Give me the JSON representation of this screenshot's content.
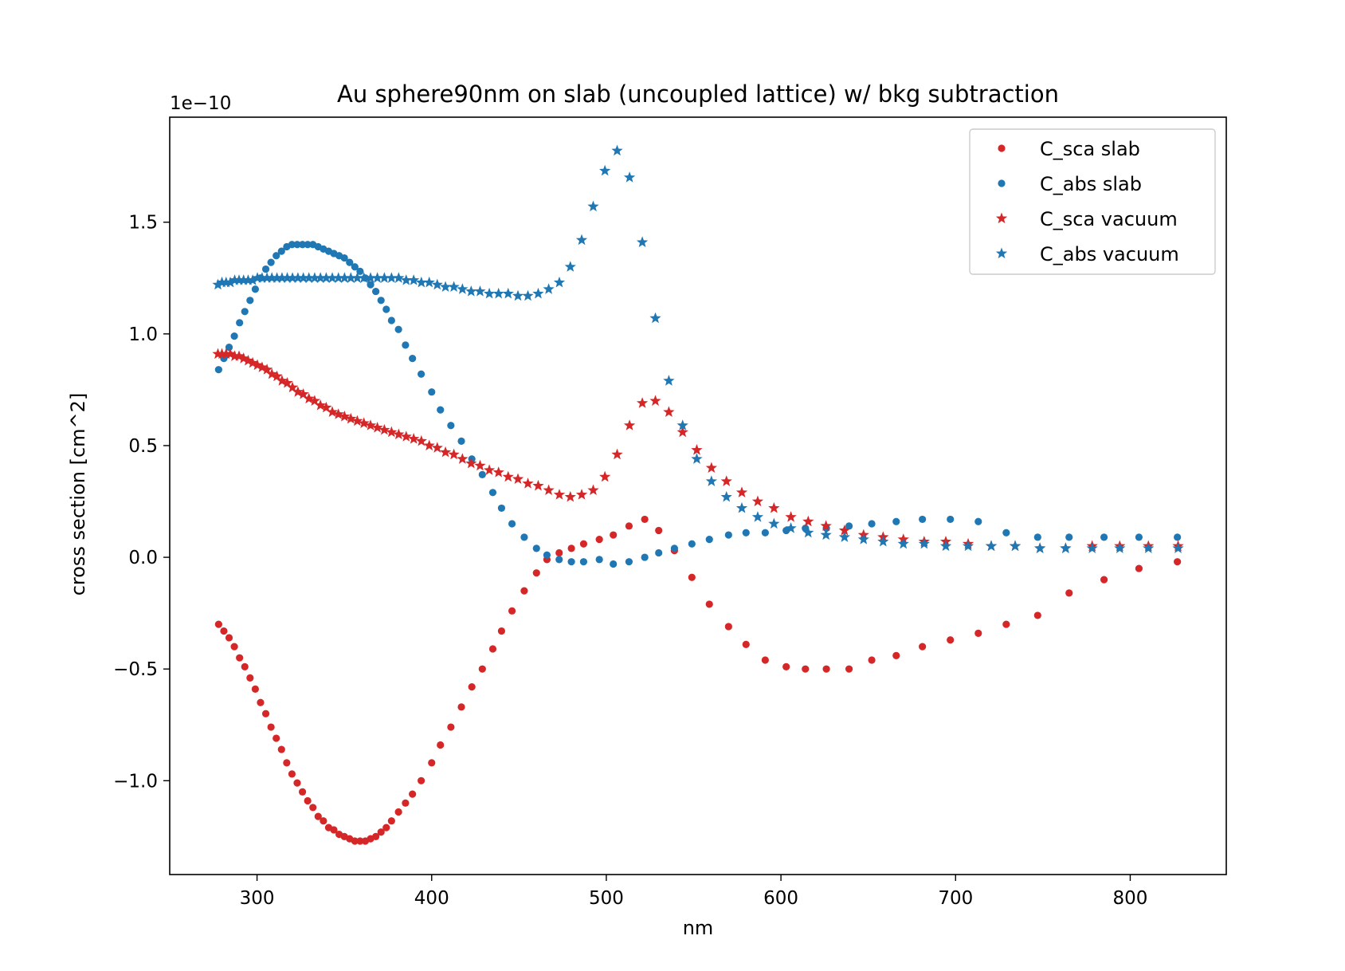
{
  "chart_data": {
    "type": "scatter",
    "title": "Au sphere90nm on slab (uncoupled lattice) w/ bkg subtraction",
    "xlabel": "nm",
    "ylabel": "cross section [cm^2]",
    "y_offset_label": "1e−10",
    "y_scale": 1e-10,
    "xlim": [
      250,
      855
    ],
    "ylim": [
      -1.42,
      1.97
    ],
    "x_ticks": [
      300,
      400,
      500,
      600,
      700,
      800
    ],
    "y_ticks": [
      -1.0,
      -0.5,
      0.0,
      0.5,
      1.0,
      1.5
    ],
    "x_tick_labels": [
      "300",
      "400",
      "500",
      "600",
      "700",
      "800"
    ],
    "y_tick_labels": [
      "−1.0",
      "−0.5",
      "0.0",
      "0.5",
      "1.0",
      "1.5"
    ],
    "grid": false,
    "legend_position": "top-right",
    "x": [
      277.6,
      279.9,
      282.3,
      284.7,
      287.2,
      289.7,
      292.3,
      294.9,
      297.5,
      300.2,
      302.9,
      305.7,
      308.5,
      311.4,
      314.3,
      317.3,
      320.3,
      323.4,
      326.5,
      329.7,
      333.0,
      336.3,
      339.6,
      343.1,
      346.6,
      350.1,
      353.7,
      357.4,
      361.2,
      365.0,
      368.9,
      372.9,
      377.0,
      381.1,
      385.4,
      389.7,
      394.1,
      398.6,
      403.2,
      407.9,
      412.7,
      417.6,
      422.6,
      427.7,
      433.0,
      438.3,
      443.8,
      449.4,
      455.1,
      461.0,
      467.0,
      473.1,
      479.4,
      485.9,
      492.5,
      499.2,
      506.2,
      513.3,
      520.6,
      528.1,
      535.8,
      543.7,
      551.8,
      560.2,
      568.8,
      577.6,
      586.7,
      596.0,
      605.7,
      615.6,
      625.8,
      636.4,
      647.3,
      658.5,
      670.1,
      682.0,
      694.4,
      707.2,
      720.4,
      734.1,
      748.3,
      763.0,
      778.2,
      794.0,
      810.4,
      827.4
    ],
    "series": [
      {
        "name": "C_sca slab",
        "marker": "dot",
        "color": "#d62728",
        "x": [
          278.0,
          281.0,
          284.0,
          287.0,
          290.0,
          293.0,
          296.0,
          299.0,
          302.0,
          305.0,
          308.0,
          311.0,
          314.0,
          317.0,
          320.0,
          323.0,
          326.0,
          329.0,
          332.0,
          335.0,
          338.0,
          341.0,
          344.0,
          347.0,
          350.0,
          353.0,
          356.0,
          359.0,
          362.0,
          365.0,
          368.0,
          371.0,
          374.0,
          377.0,
          381.0,
          385.0,
          389.0,
          394.0,
          400.0,
          405.0,
          411.0,
          417.0,
          423.0,
          429.0,
          435.0,
          440.0,
          446.0,
          453.0,
          460.0,
          466.0,
          473.0,
          480.0,
          487.0,
          496.0,
          504.0,
          513.0,
          522.0,
          530.0,
          539.0,
          549.0,
          559.0,
          570.0,
          580.0,
          591.0,
          603.0,
          614.0,
          626.0,
          639.0,
          652.0,
          666.0,
          681.0,
          697.0,
          713.0,
          729.0,
          747.0,
          765.0,
          785.0,
          805.0,
          827.0
        ],
        "values": [
          -0.3,
          -0.33,
          -0.36,
          -0.4,
          -0.45,
          -0.49,
          -0.54,
          -0.59,
          -0.65,
          -0.7,
          -0.76,
          -0.81,
          -0.86,
          -0.92,
          -0.97,
          -1.01,
          -1.05,
          -1.09,
          -1.12,
          -1.16,
          -1.18,
          -1.21,
          -1.22,
          -1.24,
          -1.25,
          -1.26,
          -1.27,
          -1.27,
          -1.27,
          -1.26,
          -1.25,
          -1.23,
          -1.21,
          -1.18,
          -1.14,
          -1.1,
          -1.06,
          -1.0,
          -0.92,
          -0.84,
          -0.76,
          -0.67,
          -0.58,
          -0.5,
          -0.41,
          -0.33,
          -0.24,
          -0.15,
          -0.07,
          -0.01,
          0.02,
          0.04,
          0.06,
          0.08,
          0.1,
          0.14,
          0.17,
          0.12,
          0.03,
          -0.09,
          -0.21,
          -0.31,
          -0.39,
          -0.46,
          -0.49,
          -0.5,
          -0.5,
          -0.5,
          -0.46,
          -0.44,
          -0.4,
          -0.37,
          -0.34,
          -0.3,
          -0.26,
          -0.16,
          -0.1,
          -0.05,
          -0.02
        ]
      },
      {
        "name": "C_abs slab",
        "marker": "dot",
        "color": "#1f77b4",
        "x": [
          278.0,
          281.0,
          284.0,
          287.0,
          290.0,
          293.0,
          296.0,
          299.0,
          302.0,
          305.0,
          308.0,
          311.0,
          314.0,
          317.0,
          320.0,
          323.0,
          326.0,
          329.0,
          332.0,
          335.0,
          338.0,
          341.0,
          344.0,
          347.0,
          350.0,
          353.0,
          356.0,
          359.0,
          362.0,
          365.0,
          368.0,
          371.0,
          374.0,
          377.0,
          381.0,
          385.0,
          389.0,
          394.0,
          400.0,
          405.0,
          411.0,
          417.0,
          423.0,
          429.0,
          435.0,
          440.0,
          446.0,
          453.0,
          460.0,
          466.0,
          473.0,
          480.0,
          487.0,
          496.0,
          504.0,
          513.0,
          522.0,
          530.0,
          539.0,
          549.0,
          559.0,
          570.0,
          580.0,
          591.0,
          603.0,
          614.0,
          626.0,
          639.0,
          652.0,
          666.0,
          681.0,
          697.0,
          713.0,
          729.0,
          747.0,
          765.0,
          785.0,
          805.0,
          827.0
        ],
        "values": [
          0.84,
          0.89,
          0.94,
          0.99,
          1.05,
          1.1,
          1.15,
          1.2,
          1.25,
          1.29,
          1.32,
          1.35,
          1.37,
          1.39,
          1.4,
          1.4,
          1.4,
          1.4,
          1.4,
          1.39,
          1.38,
          1.37,
          1.36,
          1.35,
          1.34,
          1.32,
          1.3,
          1.28,
          1.25,
          1.22,
          1.19,
          1.15,
          1.11,
          1.06,
          1.02,
          0.95,
          0.89,
          0.82,
          0.74,
          0.66,
          0.59,
          0.52,
          0.44,
          0.37,
          0.29,
          0.22,
          0.15,
          0.09,
          0.04,
          0.01,
          -0.01,
          -0.02,
          -0.02,
          -0.01,
          -0.03,
          -0.02,
          0.0,
          0.02,
          0.04,
          0.06,
          0.08,
          0.1,
          0.11,
          0.11,
          0.12,
          0.13,
          0.13,
          0.14,
          0.15,
          0.16,
          0.17,
          0.17,
          0.16,
          0.11,
          0.09,
          0.09,
          0.09,
          0.09,
          0.09
        ]
      },
      {
        "name": "C_sca vacuum",
        "marker": "star",
        "color": "#d62728",
        "x": [
          277.6,
          279.9,
          282.3,
          284.7,
          287.2,
          289.7,
          292.3,
          294.9,
          297.5,
          300.2,
          302.9,
          305.7,
          308.5,
          311.4,
          314.3,
          317.3,
          320.3,
          323.4,
          326.5,
          329.7,
          333.0,
          336.3,
          339.6,
          343.1,
          346.6,
          350.1,
          353.7,
          357.4,
          361.2,
          365.0,
          368.9,
          372.9,
          377.0,
          381.1,
          385.4,
          389.7,
          394.1,
          398.6,
          403.2,
          407.9,
          412.7,
          417.6,
          422.6,
          427.7,
          433.0,
          438.3,
          443.8,
          449.4,
          455.1,
          461.0,
          467.0,
          473.1,
          479.4,
          485.9,
          492.5,
          499.2,
          506.2,
          513.3,
          520.6,
          528.1,
          535.8,
          543.7,
          551.8,
          560.2,
          568.8,
          577.6,
          586.7,
          596.0,
          605.7,
          615.6,
          625.8,
          636.4,
          647.3,
          658.5,
          670.1,
          682.0,
          694.4,
          707.2,
          720.4,
          734.1,
          748.3,
          763.0,
          778.2,
          794.0,
          810.4,
          827.4
        ],
        "values": [
          0.91,
          0.91,
          0.91,
          0.91,
          0.9,
          0.9,
          0.89,
          0.88,
          0.87,
          0.86,
          0.85,
          0.84,
          0.82,
          0.81,
          0.79,
          0.78,
          0.76,
          0.74,
          0.73,
          0.71,
          0.7,
          0.68,
          0.67,
          0.65,
          0.64,
          0.63,
          0.62,
          0.61,
          0.6,
          0.59,
          0.58,
          0.57,
          0.56,
          0.55,
          0.54,
          0.53,
          0.52,
          0.5,
          0.49,
          0.47,
          0.46,
          0.44,
          0.42,
          0.41,
          0.39,
          0.38,
          0.36,
          0.35,
          0.33,
          0.32,
          0.3,
          0.28,
          0.27,
          0.28,
          0.3,
          0.36,
          0.46,
          0.59,
          0.69,
          0.7,
          0.65,
          0.56,
          0.48,
          0.4,
          0.34,
          0.29,
          0.25,
          0.22,
          0.18,
          0.16,
          0.14,
          0.12,
          0.1,
          0.09,
          0.08,
          0.07,
          0.07,
          0.06,
          0.05,
          0.05,
          0.04,
          0.04,
          0.05,
          0.05,
          0.05,
          0.05
        ]
      },
      {
        "name": "C_abs vacuum",
        "marker": "star",
        "color": "#1f77b4",
        "x": [
          277.6,
          279.9,
          282.3,
          284.7,
          287.2,
          289.7,
          292.3,
          294.9,
          297.5,
          300.2,
          302.9,
          305.7,
          308.5,
          311.4,
          314.3,
          317.3,
          320.3,
          323.4,
          326.5,
          329.7,
          333.0,
          336.3,
          339.6,
          343.1,
          346.6,
          350.1,
          353.7,
          357.4,
          361.2,
          365.0,
          368.9,
          372.9,
          377.0,
          381.1,
          385.4,
          389.7,
          394.1,
          398.6,
          403.2,
          407.9,
          412.7,
          417.6,
          422.6,
          427.7,
          433.0,
          438.3,
          443.8,
          449.4,
          455.1,
          461.0,
          467.0,
          473.1,
          479.4,
          485.9,
          492.5,
          499.2,
          506.2,
          513.3,
          520.6,
          528.1,
          535.8,
          543.7,
          551.8,
          560.2,
          568.8,
          577.6,
          586.7,
          596.0,
          605.7,
          615.6,
          625.8,
          636.4,
          647.3,
          658.5,
          670.1,
          682.0,
          694.4,
          707.2,
          720.4,
          734.1,
          748.3,
          763.0,
          778.2,
          794.0,
          810.4,
          827.4
        ],
        "values": [
          1.22,
          1.23,
          1.23,
          1.23,
          1.24,
          1.24,
          1.24,
          1.24,
          1.24,
          1.25,
          1.25,
          1.25,
          1.25,
          1.25,
          1.25,
          1.25,
          1.25,
          1.25,
          1.25,
          1.25,
          1.25,
          1.25,
          1.25,
          1.25,
          1.25,
          1.25,
          1.25,
          1.25,
          1.25,
          1.25,
          1.25,
          1.25,
          1.25,
          1.25,
          1.24,
          1.24,
          1.23,
          1.23,
          1.22,
          1.21,
          1.21,
          1.2,
          1.19,
          1.19,
          1.18,
          1.18,
          1.18,
          1.17,
          1.17,
          1.18,
          1.2,
          1.23,
          1.3,
          1.42,
          1.57,
          1.73,
          1.82,
          1.7,
          1.41,
          1.07,
          0.79,
          0.59,
          0.44,
          0.34,
          0.27,
          0.22,
          0.18,
          0.15,
          0.13,
          0.11,
          0.1,
          0.09,
          0.08,
          0.07,
          0.06,
          0.06,
          0.05,
          0.05,
          0.05,
          0.05,
          0.04,
          0.04,
          0.04,
          0.04,
          0.04,
          0.04
        ]
      }
    ]
  }
}
